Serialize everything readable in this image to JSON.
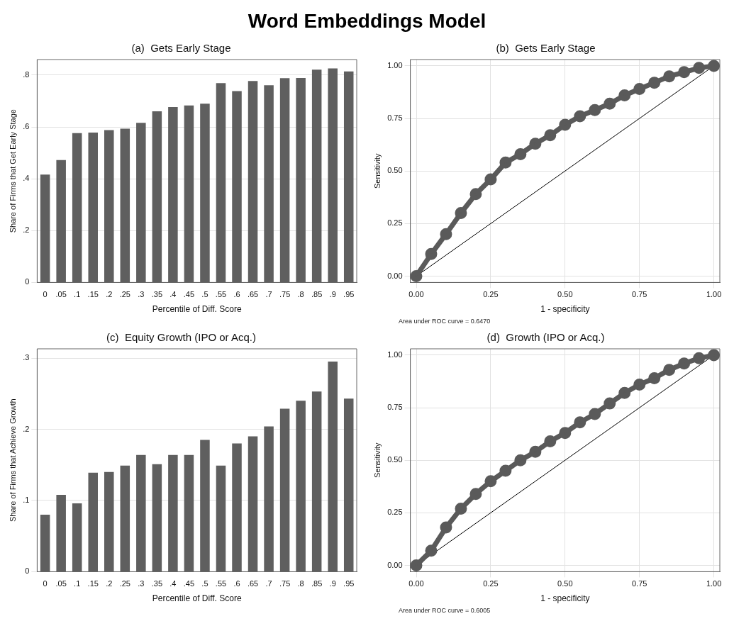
{
  "chart_data": [
    {
      "type": "other",
      "title": "Word Embeddings Model"
    },
    {
      "type": "bar",
      "title": "(a)  Gets Early Stage",
      "xlabel": "Percentile of Diff. Score",
      "ylabel": "Share of Firms that Get Early Stage",
      "categories": [
        "0",
        ".05",
        ".1",
        ".15",
        ".2",
        ".25",
        ".3",
        ".35",
        ".4",
        ".45",
        ".5",
        ".55",
        ".6",
        ".65",
        ".7",
        ".75",
        ".8",
        ".85",
        ".9",
        ".95"
      ],
      "values": [
        0.416,
        0.472,
        0.576,
        0.578,
        0.588,
        0.593,
        0.616,
        0.66,
        0.677,
        0.683,
        0.69,
        0.769,
        0.738,
        0.777,
        0.761,
        0.788,
        0.789,
        0.821,
        0.826,
        0.814
      ],
      "color": "#5f5f5f",
      "ylim": [
        0,
        0.86
      ],
      "yticks": [
        0,
        {
          "value": 0.2,
          "label": ".2"
        },
        {
          "value": 0.4,
          "label": ".4"
        },
        {
          "value": 0.6,
          "label": ".6"
        },
        {
          "value": 0.8,
          "label": ".8"
        }
      ],
      "grid": "y",
      "legend": false
    },
    {
      "type": "line",
      "title": "(b)  Gets Early Stage",
      "xlabel": "1 - specificity",
      "ylabel": "Sensitivity",
      "series": [
        {
          "type": "line",
          "color": "#5a5a5a",
          "marker": "circle",
          "x": [
            0,
            0.05,
            0.1,
            0.15,
            0.2,
            0.25,
            0.3,
            0.35,
            0.4,
            0.45,
            0.5,
            0.55,
            0.6,
            0.65,
            0.7,
            0.75,
            0.8,
            0.85,
            0.9,
            0.95,
            1
          ],
          "values": [
            0,
            0.105,
            0.2,
            0.3,
            0.39,
            0.46,
            0.54,
            0.58,
            0.63,
            0.67,
            0.72,
            0.76,
            0.79,
            0.82,
            0.86,
            0.89,
            0.92,
            0.95,
            0.97,
            0.99,
            1
          ]
        },
        {
          "type": "line",
          "color": "#000000",
          "marker": "none",
          "x": [
            0,
            1
          ],
          "values": [
            0,
            1
          ]
        }
      ],
      "xlim": [
        -0.02,
        1.02
      ],
      "ylim": [
        -0.03,
        1.03
      ],
      "xticks": [
        {
          "value": 0,
          "label": "0.00"
        },
        {
          "value": 0.25,
          "label": "0.25"
        },
        {
          "value": 0.5,
          "label": "0.50"
        },
        {
          "value": 0.75,
          "label": "0.75"
        },
        {
          "value": 1,
          "label": "1.00"
        }
      ],
      "yticks": [
        {
          "value": 0,
          "label": "0.00"
        },
        {
          "value": 0.25,
          "label": "0.25"
        },
        {
          "value": 0.5,
          "label": "0.50"
        },
        {
          "value": 0.75,
          "label": "0.75"
        },
        {
          "value": 1,
          "label": "1.00"
        }
      ],
      "grid": true,
      "legend": false,
      "annotations": [
        "Area under ROC curve = 0.6470"
      ]
    },
    {
      "type": "bar",
      "title": "(c)  Equity Growth (IPO or Acq.)",
      "xlabel": "Percentile of Diff. Score",
      "ylabel": "Share of Firms that Achieve Growth",
      "categories": [
        "0",
        ".05",
        ".1",
        ".15",
        ".2",
        ".25",
        ".3",
        ".35",
        ".4",
        ".45",
        ".5",
        ".55",
        ".6",
        ".65",
        ".7",
        ".75",
        ".8",
        ".85",
        ".9",
        ".95"
      ],
      "values": [
        0.08,
        0.108,
        0.096,
        0.139,
        0.14,
        0.149,
        0.164,
        0.151,
        0.164,
        0.164,
        0.185,
        0.149,
        0.18,
        0.19,
        0.204,
        0.229,
        0.24,
        0.253,
        0.295,
        0.243
      ],
      "color": "#5f5f5f",
      "ylim": [
        0,
        0.313
      ],
      "yticks": [
        0,
        {
          "value": 0.1,
          "label": ".1"
        },
        {
          "value": 0.2,
          "label": ".2"
        },
        {
          "value": 0.3,
          "label": ".3"
        }
      ],
      "grid": "y",
      "legend": false
    },
    {
      "type": "line",
      "title": "(d)  Growth (IPO or Acq.)",
      "xlabel": "1 - specificity",
      "ylabel": "Sensitivity",
      "series": [
        {
          "type": "line",
          "color": "#5a5a5a",
          "marker": "circle",
          "x": [
            0,
            0.05,
            0.1,
            0.15,
            0.2,
            0.25,
            0.3,
            0.35,
            0.4,
            0.45,
            0.5,
            0.55,
            0.6,
            0.65,
            0.7,
            0.75,
            0.8,
            0.85,
            0.9,
            0.95,
            1
          ],
          "values": [
            0,
            0.07,
            0.18,
            0.27,
            0.34,
            0.4,
            0.45,
            0.5,
            0.54,
            0.59,
            0.63,
            0.68,
            0.72,
            0.77,
            0.82,
            0.86,
            0.89,
            0.93,
            0.96,
            0.985,
            1
          ]
        },
        {
          "type": "line",
          "color": "#000000",
          "marker": "none",
          "x": [
            0,
            1
          ],
          "values": [
            0,
            1
          ]
        }
      ],
      "xlim": [
        -0.02,
        1.02
      ],
      "ylim": [
        -0.03,
        1.03
      ],
      "xticks": [
        {
          "value": 0,
          "label": "0.00"
        },
        {
          "value": 0.25,
          "label": "0.25"
        },
        {
          "value": 0.5,
          "label": "0.50"
        },
        {
          "value": 0.75,
          "label": "0.75"
        },
        {
          "value": 1,
          "label": "1.00"
        }
      ],
      "yticks": [
        {
          "value": 0,
          "label": "0.00"
        },
        {
          "value": 0.25,
          "label": "0.25"
        },
        {
          "value": 0.5,
          "label": "0.50"
        },
        {
          "value": 0.75,
          "label": "0.75"
        },
        {
          "value": 1,
          "label": "1.00"
        }
      ],
      "grid": true,
      "legend": false,
      "annotations": [
        "Area under ROC curve = 0.6005"
      ]
    }
  ]
}
